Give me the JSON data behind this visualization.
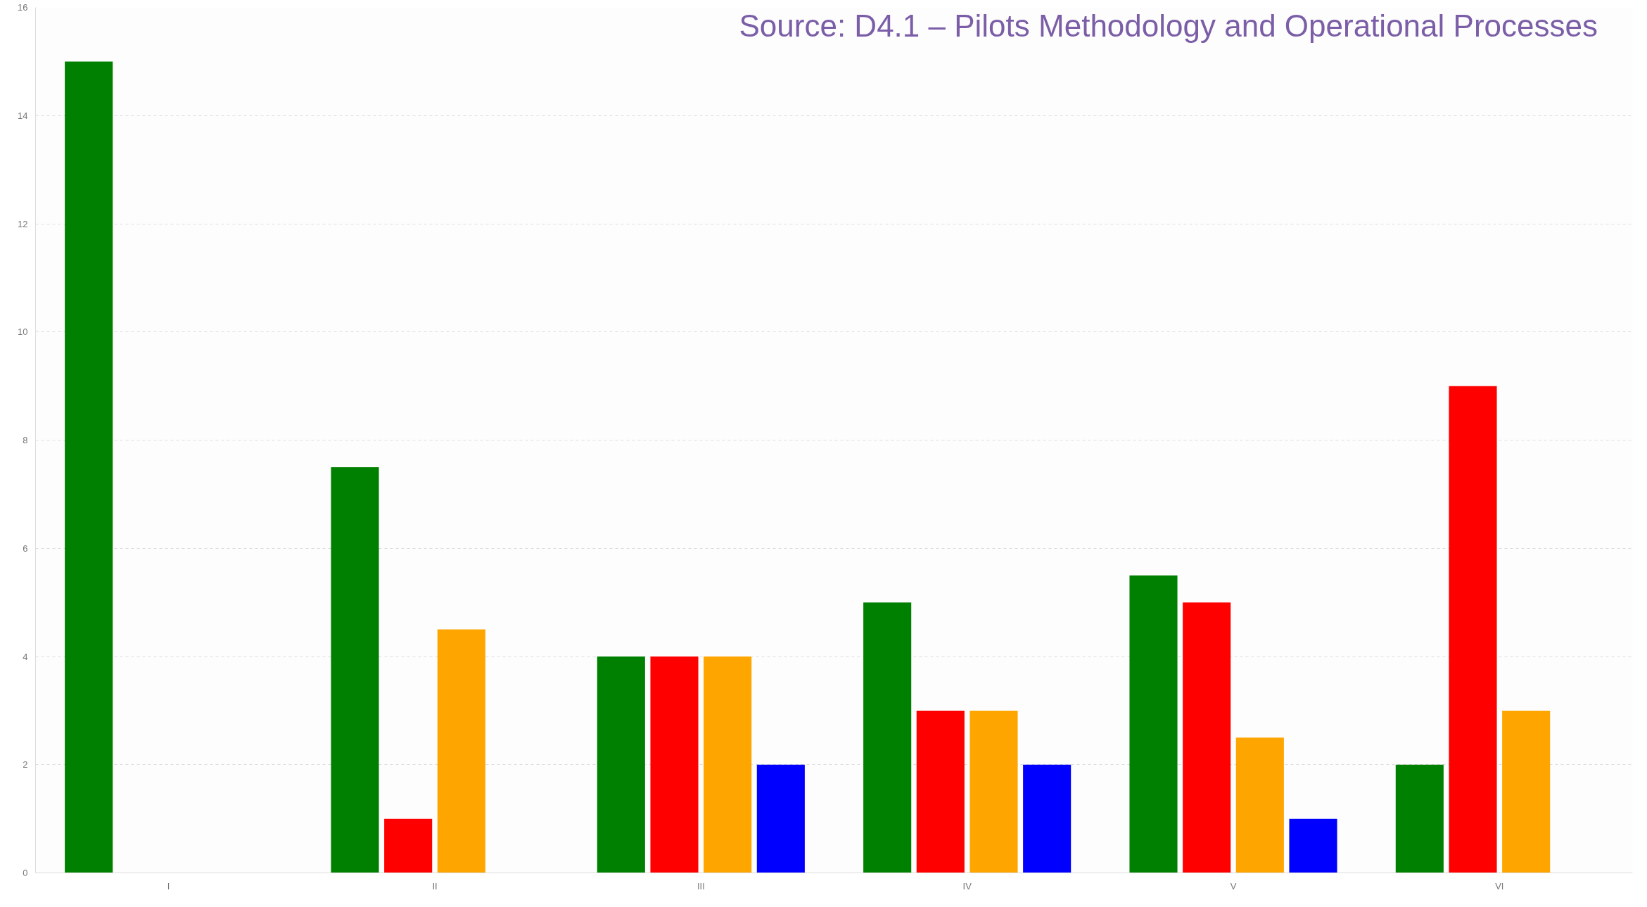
{
  "chart_data": {
    "type": "bar",
    "categories": [
      "I",
      "II",
      "III",
      "IV",
      "V",
      "VI"
    ],
    "series": [
      {
        "color": "#008000",
        "values": [
          15,
          7.5,
          4,
          5,
          5.5,
          2
        ]
      },
      {
        "color": "#ff0000",
        "values": [
          null,
          1,
          4,
          3,
          5,
          9
        ]
      },
      {
        "color": "#ffa500",
        "values": [
          null,
          4.5,
          4,
          3,
          2.5,
          3
        ]
      },
      {
        "color": "#0000ff",
        "values": [
          null,
          null,
          2,
          2,
          1,
          null
        ]
      }
    ],
    "ylim": [
      0,
      16
    ],
    "yticks": [
      0,
      2,
      4,
      6,
      8,
      10,
      12,
      14,
      16
    ],
    "grid": "y",
    "annotations": [
      "Source: D4.1 – Pilots Methodology and Operational Processes"
    ]
  }
}
